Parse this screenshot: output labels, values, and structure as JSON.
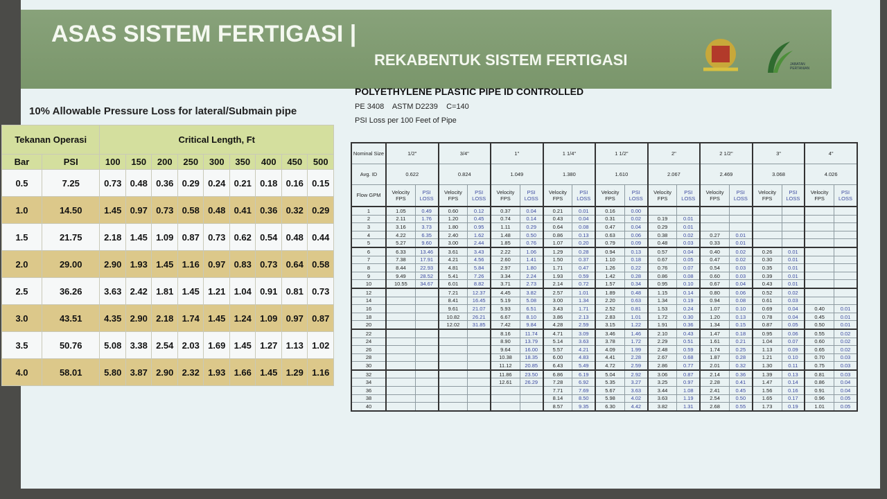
{
  "header": {
    "title": "ASAS SISTEM FERTIGASI |",
    "subtitle": "REKABENTUK SISTEM FERTIGASI",
    "logo_text": "JABATAN PERTANIAN"
  },
  "left_table": {
    "title": "10% Allowable Pressure Loss for lateral/Submain pipe",
    "operasi": "Tekanan Operasi",
    "critical": "Critical Length, Ft",
    "columns": [
      "Bar",
      "PSI",
      "100",
      "150",
      "200",
      "250",
      "300",
      "350",
      "400",
      "450",
      "500"
    ],
    "rows": [
      [
        "0.5",
        "7.25",
        "0.73",
        "0.48",
        "0.36",
        "0.29",
        "0.24",
        "0.21",
        "0.18",
        "0.16",
        "0.15"
      ],
      [
        "1.0",
        "14.50",
        "1.45",
        "0.97",
        "0.73",
        "0.58",
        "0.48",
        "0.41",
        "0.36",
        "0.32",
        "0.29"
      ],
      [
        "1.5",
        "21.75",
        "2.18",
        "1.45",
        "1.09",
        "0.87",
        "0.73",
        "0.62",
        "0.54",
        "0.48",
        "0.44"
      ],
      [
        "2.0",
        "29.00",
        "2.90",
        "1.93",
        "1.45",
        "1.16",
        "0.97",
        "0.83",
        "0.73",
        "0.64",
        "0.58"
      ],
      [
        "2.5",
        "36.26",
        "3.63",
        "2.42",
        "1.81",
        "1.45",
        "1.21",
        "1.04",
        "0.91",
        "0.81",
        "0.73"
      ],
      [
        "3.0",
        "43.51",
        "4.35",
        "2.90",
        "2.18",
        "1.74",
        "1.45",
        "1.24",
        "1.09",
        "0.97",
        "0.87"
      ],
      [
        "3.5",
        "50.76",
        "5.08",
        "3.38",
        "2.54",
        "2.03",
        "1.69",
        "1.45",
        "1.27",
        "1.13",
        "1.02"
      ],
      [
        "4.0",
        "58.01",
        "5.80",
        "3.87",
        "2.90",
        "2.32",
        "1.93",
        "1.66",
        "1.45",
        "1.29",
        "1.16"
      ]
    ]
  },
  "right_table": {
    "title": "POLYETHYLENE PLASTIC PIPE ID CONTROLLED",
    "subtitle": "PE 3408    ASTM D2239    C=140",
    "note": "PSI Loss per 100 Feet of Pipe",
    "size_label": "Nominal Size",
    "id_label": "Avg. ID",
    "flow_label": "Flow GPM",
    "velocity_label": "Velocity",
    "fps_label": "FPS",
    "psi_label": "PSI",
    "loss_label": "LOSS",
    "sizes": [
      {
        "name": "1/2\"",
        "id": "0.622"
      },
      {
        "name": "3/4\"",
        "id": "0.824"
      },
      {
        "name": "1\"",
        "id": "1.049"
      },
      {
        "name": "1 1/4\"",
        "id": "1.380"
      },
      {
        "name": "1 1/2\"",
        "id": "1.610"
      },
      {
        "name": "2\"",
        "id": "2.067"
      },
      {
        "name": "2 1/2\"",
        "id": "2.469"
      },
      {
        "name": "3\"",
        "id": "3.068"
      },
      {
        "name": "4\"",
        "id": "4.026"
      }
    ],
    "rows": [
      [
        "1",
        "1.05",
        "0.49",
        "0.60",
        "0.12",
        "0.37",
        "0.04",
        "0.21",
        "0.01",
        "0.16",
        "0.00",
        null,
        null,
        null,
        null,
        null,
        null,
        null,
        null
      ],
      [
        "2",
        "2.11",
        "1.76",
        "1.20",
        "0.45",
        "0.74",
        "0.14",
        "0.43",
        "0.04",
        "0.31",
        "0.02",
        "0.19",
        "0.01",
        null,
        null,
        null,
        null,
        null,
        null
      ],
      [
        "3",
        "3.16",
        "3.73",
        "1.80",
        "0.95",
        "1.11",
        "0.29",
        "0.64",
        "0.08",
        "0.47",
        "0.04",
        "0.29",
        "0.01",
        null,
        null,
        null,
        null,
        null,
        null
      ],
      [
        "4",
        "4.22",
        "6.35",
        "2.40",
        "1.62",
        "1.48",
        "0.50",
        "0.86",
        "0.13",
        "0.63",
        "0.06",
        "0.38",
        "0.02",
        "0.27",
        "0.01",
        null,
        null,
        null,
        null
      ],
      [
        "5",
        "5.27",
        "9.60",
        "3.00",
        "2.44",
        "1.85",
        "0.76",
        "1.07",
        "0.20",
        "0.79",
        "0.09",
        "0.48",
        "0.03",
        "0.33",
        "0.01",
        null,
        null,
        null,
        null
      ],
      [
        "6",
        "6.33",
        "13.46",
        "3.61",
        "3.43",
        "2.22",
        "1.06",
        "1.29",
        "0.28",
        "0.94",
        "0.13",
        "0.57",
        "0.04",
        "0.40",
        "0.02",
        "0.26",
        "0.01",
        null,
        null
      ],
      [
        "7",
        "7.38",
        "17.91",
        "4.21",
        "4.56",
        "2.60",
        "1.41",
        "1.50",
        "0.37",
        "1.10",
        "0.18",
        "0.67",
        "0.05",
        "0.47",
        "0.02",
        "0.30",
        "0.01",
        null,
        null
      ],
      [
        "8",
        "8.44",
        "22.93",
        "4.81",
        "5.84",
        "2.97",
        "1.80",
        "1.71",
        "0.47",
        "1.26",
        "0.22",
        "0.76",
        "0.07",
        "0.54",
        "0.03",
        "0.35",
        "0.01",
        null,
        null
      ],
      [
        "9",
        "9.49",
        "28.52",
        "5.41",
        "7.26",
        "3.34",
        "2.24",
        "1.93",
        "0.59",
        "1.42",
        "0.28",
        "0.86",
        "0.08",
        "0.60",
        "0.03",
        "0.39",
        "0.01",
        null,
        null
      ],
      [
        "10",
        "10.55",
        "34.67",
        "6.01",
        "8.82",
        "3.71",
        "2.73",
        "2.14",
        "0.72",
        "1.57",
        "0.34",
        "0.95",
        "0.10",
        "0.67",
        "0.04",
        "0.43",
        "0.01",
        null,
        null
      ],
      [
        "12",
        null,
        null,
        "7.21",
        "12.37",
        "4.45",
        "3.82",
        "2.57",
        "1.01",
        "1.89",
        "0.48",
        "1.15",
        "0.14",
        "0.80",
        "0.06",
        "0.52",
        "0.02",
        null,
        null
      ],
      [
        "14",
        null,
        null,
        "8.41",
        "16.45",
        "5.19",
        "5.08",
        "3.00",
        "1.34",
        "2.20",
        "0.63",
        "1.34",
        "0.19",
        "0.94",
        "0.08",
        "0.61",
        "0.03",
        null,
        null
      ],
      [
        "16",
        null,
        null,
        "9.61",
        "21.07",
        "5.93",
        "6.51",
        "3.43",
        "1.71",
        "2.52",
        "0.81",
        "1.53",
        "0.24",
        "1.07",
        "0.10",
        "0.69",
        "0.04",
        "0.40",
        "0.01"
      ],
      [
        "18",
        null,
        null,
        "10.82",
        "26.21",
        "6.67",
        "8.10",
        "3.86",
        "2.13",
        "2.83",
        "1.01",
        "1.72",
        "0.30",
        "1.20",
        "0.13",
        "0.78",
        "0.04",
        "0.45",
        "0.01"
      ],
      [
        "20",
        null,
        null,
        "12.02",
        "31.85",
        "7.42",
        "9.84",
        "4.28",
        "2.59",
        "3.15",
        "1.22",
        "1.91",
        "0.36",
        "1.34",
        "0.15",
        "0.87",
        "0.05",
        "0.50",
        "0.01"
      ],
      [
        "22",
        null,
        null,
        null,
        null,
        "8.16",
        "11.74",
        "4.71",
        "3.09",
        "3.46",
        "1.46",
        "2.10",
        "0.43",
        "1.47",
        "0.18",
        "0.95",
        "0.06",
        "0.55",
        "0.02"
      ],
      [
        "24",
        null,
        null,
        null,
        null,
        "8.90",
        "13.79",
        "5.14",
        "3.63",
        "3.78",
        "1.72",
        "2.29",
        "0.51",
        "1.61",
        "0.21",
        "1.04",
        "0.07",
        "0.60",
        "0.02"
      ],
      [
        "26",
        null,
        null,
        null,
        null,
        "9.64",
        "16.00",
        "5.57",
        "4.21",
        "4.09",
        "1.99",
        "2.48",
        "0.59",
        "1.74",
        "0.25",
        "1.13",
        "0.09",
        "0.65",
        "0.02"
      ],
      [
        "28",
        null,
        null,
        null,
        null,
        "10.38",
        "18.35",
        "6.00",
        "4.83",
        "4.41",
        "2.28",
        "2.67",
        "0.68",
        "1.87",
        "0.28",
        "1.21",
        "0.10",
        "0.70",
        "0.03"
      ],
      [
        "30",
        null,
        null,
        null,
        null,
        "11.12",
        "20.85",
        "6.43",
        "5.49",
        "4.72",
        "2.59",
        "2.86",
        "0.77",
        "2.01",
        "0.32",
        "1.30",
        "0.11",
        "0.75",
        "0.03"
      ],
      [
        "32",
        null,
        null,
        null,
        null,
        "11.86",
        "23.50",
        "6.86",
        "6.19",
        "5.04",
        "2.92",
        "3.06",
        "0.87",
        "2.14",
        "0.36",
        "1.39",
        "0.13",
        "0.81",
        "0.03"
      ],
      [
        "34",
        null,
        null,
        null,
        null,
        "12.61",
        "26.29",
        "7.28",
        "6.92",
        "5.35",
        "3.27",
        "3.25",
        "0.97",
        "2.28",
        "0.41",
        "1.47",
        "0.14",
        "0.86",
        "0.04"
      ],
      [
        "36",
        null,
        null,
        null,
        null,
        null,
        null,
        "7.71",
        "7.69",
        "5.67",
        "3.63",
        "3.44",
        "1.08",
        "2.41",
        "0.45",
        "1.56",
        "0.16",
        "0.91",
        "0.04"
      ],
      [
        "38",
        null,
        null,
        null,
        null,
        null,
        null,
        "8.14",
        "8.50",
        "5.98",
        "4.02",
        "3.63",
        "1.19",
        "2.54",
        "0.50",
        "1.65",
        "0.17",
        "0.96",
        "0.05"
      ],
      [
        "40",
        null,
        null,
        null,
        null,
        null,
        null,
        "8.57",
        "9.35",
        "6.30",
        "4.42",
        "3.82",
        "1.31",
        "2.68",
        "0.55",
        "1.73",
        "0.19",
        "1.01",
        "0.05"
      ]
    ]
  }
}
